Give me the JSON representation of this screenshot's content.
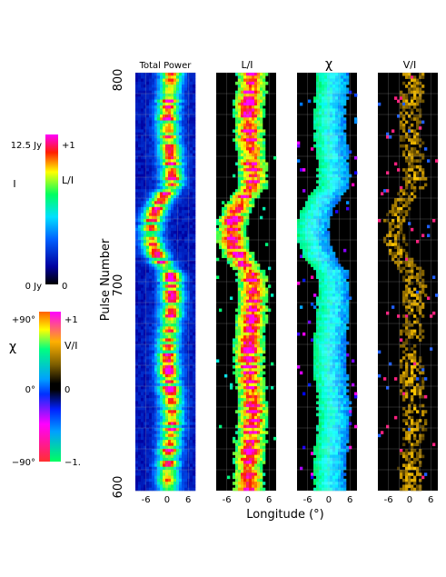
{
  "chart_data": {
    "type": "heatmap",
    "xlabel": "Longitude (°)",
    "ylabel": "Pulse Number",
    "y_ticks": [
      800,
      700,
      600
    ],
    "ylim": [
      600,
      800
    ],
    "x_ticks": [
      -6,
      0,
      6
    ],
    "x_tick_labels": [
      "-6",
      "0",
      "6"
    ],
    "xlim": [
      -9,
      8
    ],
    "panels": [
      {
        "title": "Total Power",
        "quantity": "I"
      },
      {
        "title": "L/I",
        "quantity": "L/I"
      },
      {
        "title": "χ",
        "quantity": "chi"
      },
      {
        "title": "V/I",
        "quantity": "V/I"
      }
    ],
    "colorbar_top": {
      "left_labels": [
        "12.5 Jy",
        "I",
        "0 Jy"
      ],
      "right_labels": [
        "+1",
        "L/I",
        "0"
      ]
    },
    "colorbar_bottom": {
      "symbol": "χ",
      "left_labels": [
        "+90°",
        "0°",
        "−90°"
      ],
      "right_labels": [
        "+1",
        "V/I",
        "0",
        "−1."
      ]
    },
    "colors": {
      "background": "#000000",
      "grid": "#aaaaaa"
    }
  }
}
